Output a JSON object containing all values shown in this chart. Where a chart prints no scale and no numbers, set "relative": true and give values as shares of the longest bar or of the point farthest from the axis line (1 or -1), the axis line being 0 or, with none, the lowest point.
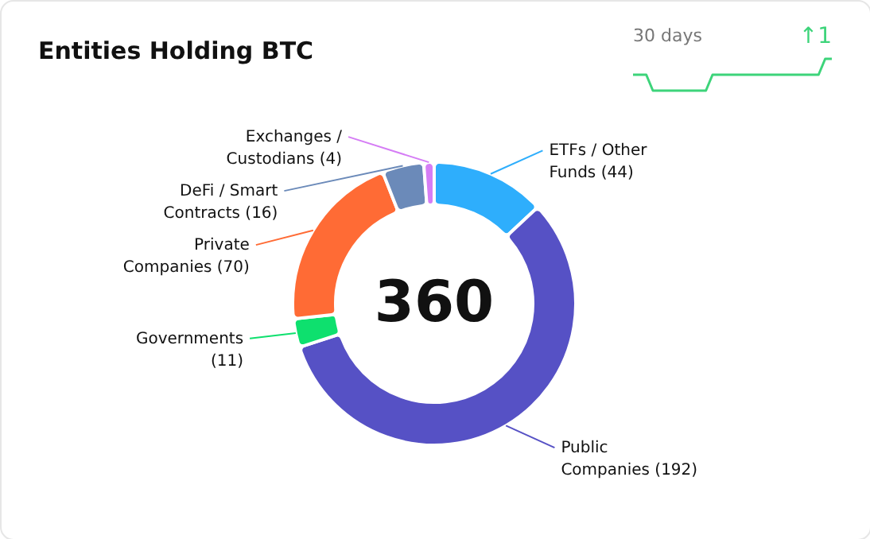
{
  "chart_data": [
    {
      "type": "donut",
      "title": "Entities Holding BTC",
      "annotations": [
        "360"
      ],
      "categories": [
        "ETFs / Other Funds",
        "Public Companies",
        "Governments",
        "Private Companies",
        "DeFi / Smart Contracts",
        "Exchanges / Custodians"
      ],
      "values": [
        44,
        192,
        11,
        70,
        16,
        4
      ],
      "colors": [
        "#2eaefc",
        "#5651c5",
        "#0ee06e",
        "#ff6b35",
        "#6b8ab9",
        "#d57df5"
      ],
      "value_labels": [
        "(44)",
        "(192)",
        "(11)",
        "(70)",
        "(16)",
        "(4)"
      ]
    },
    {
      "type": "line",
      "relative": true,
      "annotations": [
        "30 days",
        "↑1"
      ],
      "categories": [
        null,
        null,
        null,
        null,
        null,
        null,
        null,
        null,
        null,
        null,
        null,
        null,
        null,
        null,
        null,
        null,
        null,
        null,
        null,
        null,
        null,
        null,
        null,
        null,
        null,
        null,
        null,
        null,
        null,
        null,
        null
      ],
      "series": [
        {
          "color": "#3dd47a",
          "values": [
            0.5,
            0.5,
            0.5,
            0,
            0,
            0,
            0,
            0,
            0,
            0,
            0,
            0,
            0.5,
            0.5,
            0.5,
            0.5,
            0.5,
            0.5,
            0.5,
            0.5,
            0.5,
            0.5,
            0.5,
            0.5,
            0.5,
            0.5,
            0.5,
            0.5,
            0.5,
            1,
            1
          ]
        }
      ]
    }
  ]
}
